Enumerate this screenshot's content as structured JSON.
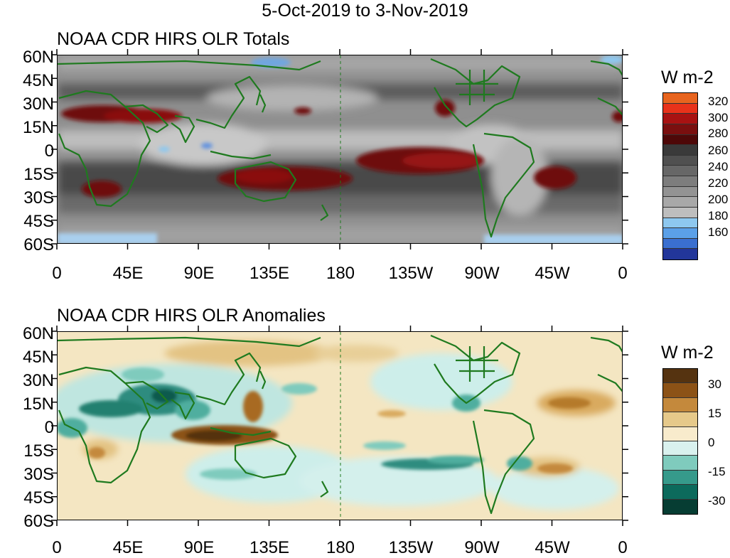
{
  "title": "5-Oct-2019 to 3-Nov-2019",
  "panels": [
    {
      "title": "NOAA CDR HIRS OLR Totals",
      "units": "W m-2",
      "colorbar_labels": [
        "320",
        "300",
        "280",
        "260",
        "240",
        "220",
        "200",
        "180",
        "160"
      ],
      "colorbar_colors": [
        "#e8641e",
        "#e8321a",
        "#a81212",
        "#7a0f0f",
        "#4e0808",
        "#3a3a3a",
        "#505050",
        "#676767",
        "#7d7d7d",
        "#939393",
        "#a8a8a8",
        "#bebebe",
        "#8ec8ef",
        "#5ba0e8",
        "#3a6fd0",
        "#22369a"
      ]
    },
    {
      "title": "NOAA CDR HIRS OLR Anomalies",
      "units": "W m-2",
      "colorbar_labels": [
        "30",
        "15",
        "0",
        "-15",
        "-30"
      ],
      "colorbar_colors": [
        "#553310",
        "#8c5216",
        "#c4893c",
        "#e6c98a",
        "#f8ebcc",
        "#d9f1ee",
        "#7fcbbd",
        "#369a8b",
        "#0c6a5c",
        "#063d33"
      ]
    }
  ],
  "axes": {
    "lat_labels": [
      "60N",
      "45N",
      "30N",
      "15N",
      "0",
      "15S",
      "30S",
      "45S",
      "60S"
    ],
    "lon_labels": [
      "0",
      "45E",
      "90E",
      "135E",
      "180",
      "135W",
      "90W",
      "45W",
      "0"
    ]
  },
  "map_colors": {
    "totals_base": "#8d8d8d",
    "land_outline": "#1f7a1f",
    "anom_base": "#f6e7c3"
  }
}
